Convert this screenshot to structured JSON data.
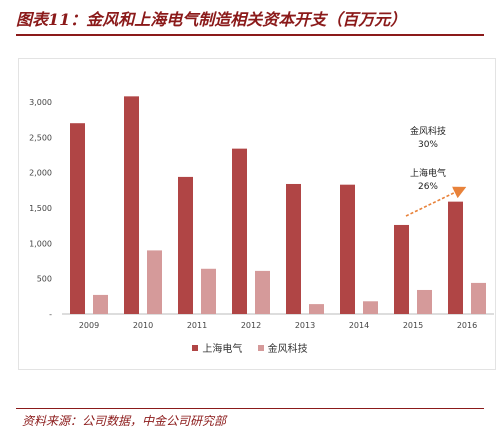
{
  "title": "图表11：金风和上海电气制造相关资本开支（百万元）",
  "source": "资料来源：公司数据，中金公司研究部",
  "colors": {
    "accent": "#8B1A1A",
    "series1": "#B04545",
    "series2": "#D59A9A",
    "arrow": "#E8823A"
  },
  "chart_data": {
    "type": "bar",
    "categories": [
      "2009",
      "2010",
      "2011",
      "2012",
      "2013",
      "2014",
      "2015",
      "2016"
    ],
    "series": [
      {
        "name": "上海电气",
        "values": [
          2700,
          3080,
          1940,
          2340,
          1840,
          1830,
          1260,
          1590
        ]
      },
      {
        "name": "金风科技",
        "values": [
          270,
          900,
          640,
          610,
          140,
          180,
          340,
          440
        ]
      }
    ],
    "ylim": [
      0,
      3000
    ],
    "yticks": [
      0,
      500,
      1000,
      1500,
      2000,
      2500,
      3000
    ],
    "ytick_labels": [
      "-",
      "500",
      "1,000",
      "1,500",
      "2,000",
      "2,500",
      "3,000"
    ],
    "legend_position": "bottom",
    "grid": false,
    "annotations": [
      {
        "name": "金风科技",
        "value": "30%"
      },
      {
        "name": "上海电气",
        "value": "26%"
      }
    ]
  }
}
